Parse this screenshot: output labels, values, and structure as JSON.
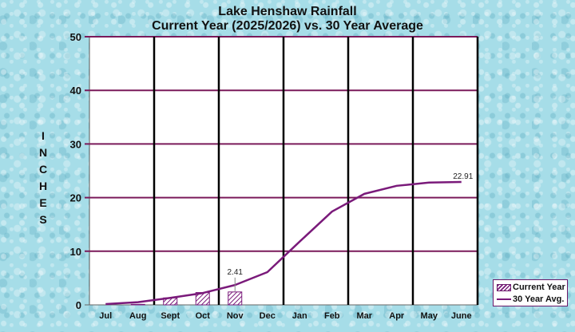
{
  "chart_data": {
    "type": "bar+line",
    "title": "Lake Henshaw Rainfall",
    "subtitle": "Current Year (2025/2026) vs. 30 Year Average",
    "xlabel": "",
    "ylabel": "INCHES",
    "ylim": [
      0,
      50
    ],
    "yticks": [
      0,
      10,
      20,
      30,
      40,
      50
    ],
    "grid": true,
    "legend_position": "bottom-right",
    "categories": [
      "Jul",
      "Aug",
      "Sept",
      "Oct",
      "Nov",
      "Dec",
      "Jan",
      "Feb",
      "Mar",
      "Apr",
      "May",
      "June"
    ],
    "series": [
      {
        "name": "Current Year",
        "type": "bar",
        "style": "hatched",
        "values": [
          0.0,
          0.1,
          1.3,
          2.3,
          2.41,
          null,
          null,
          null,
          null,
          null,
          null,
          null
        ]
      },
      {
        "name": "30 Year Avg.",
        "type": "line",
        "values": [
          0.15,
          0.5,
          1.3,
          2.2,
          3.7,
          6.1,
          11.8,
          17.4,
          20.7,
          22.2,
          22.8,
          22.91
        ]
      }
    ],
    "annotations": [
      {
        "category": "Nov",
        "series": "Current Year",
        "text": "2.41"
      },
      {
        "category": "June",
        "series": "30 Year Avg.",
        "text": "22.91"
      }
    ]
  },
  "title": "Lake Henshaw Rainfall",
  "subtitle": "Current Year (2025/2026) vs. 30 Year Average",
  "ylabel_letters": [
    "I",
    "N",
    "C",
    "H",
    "E",
    "S"
  ],
  "legend": {
    "items": [
      {
        "label": "Current Year"
      },
      {
        "label": "30 Year Avg."
      }
    ]
  },
  "colors": {
    "line": "#7a1a7a",
    "gridline": "#7a1a5a",
    "divider": "#000000",
    "background": "#a6dde8"
  }
}
